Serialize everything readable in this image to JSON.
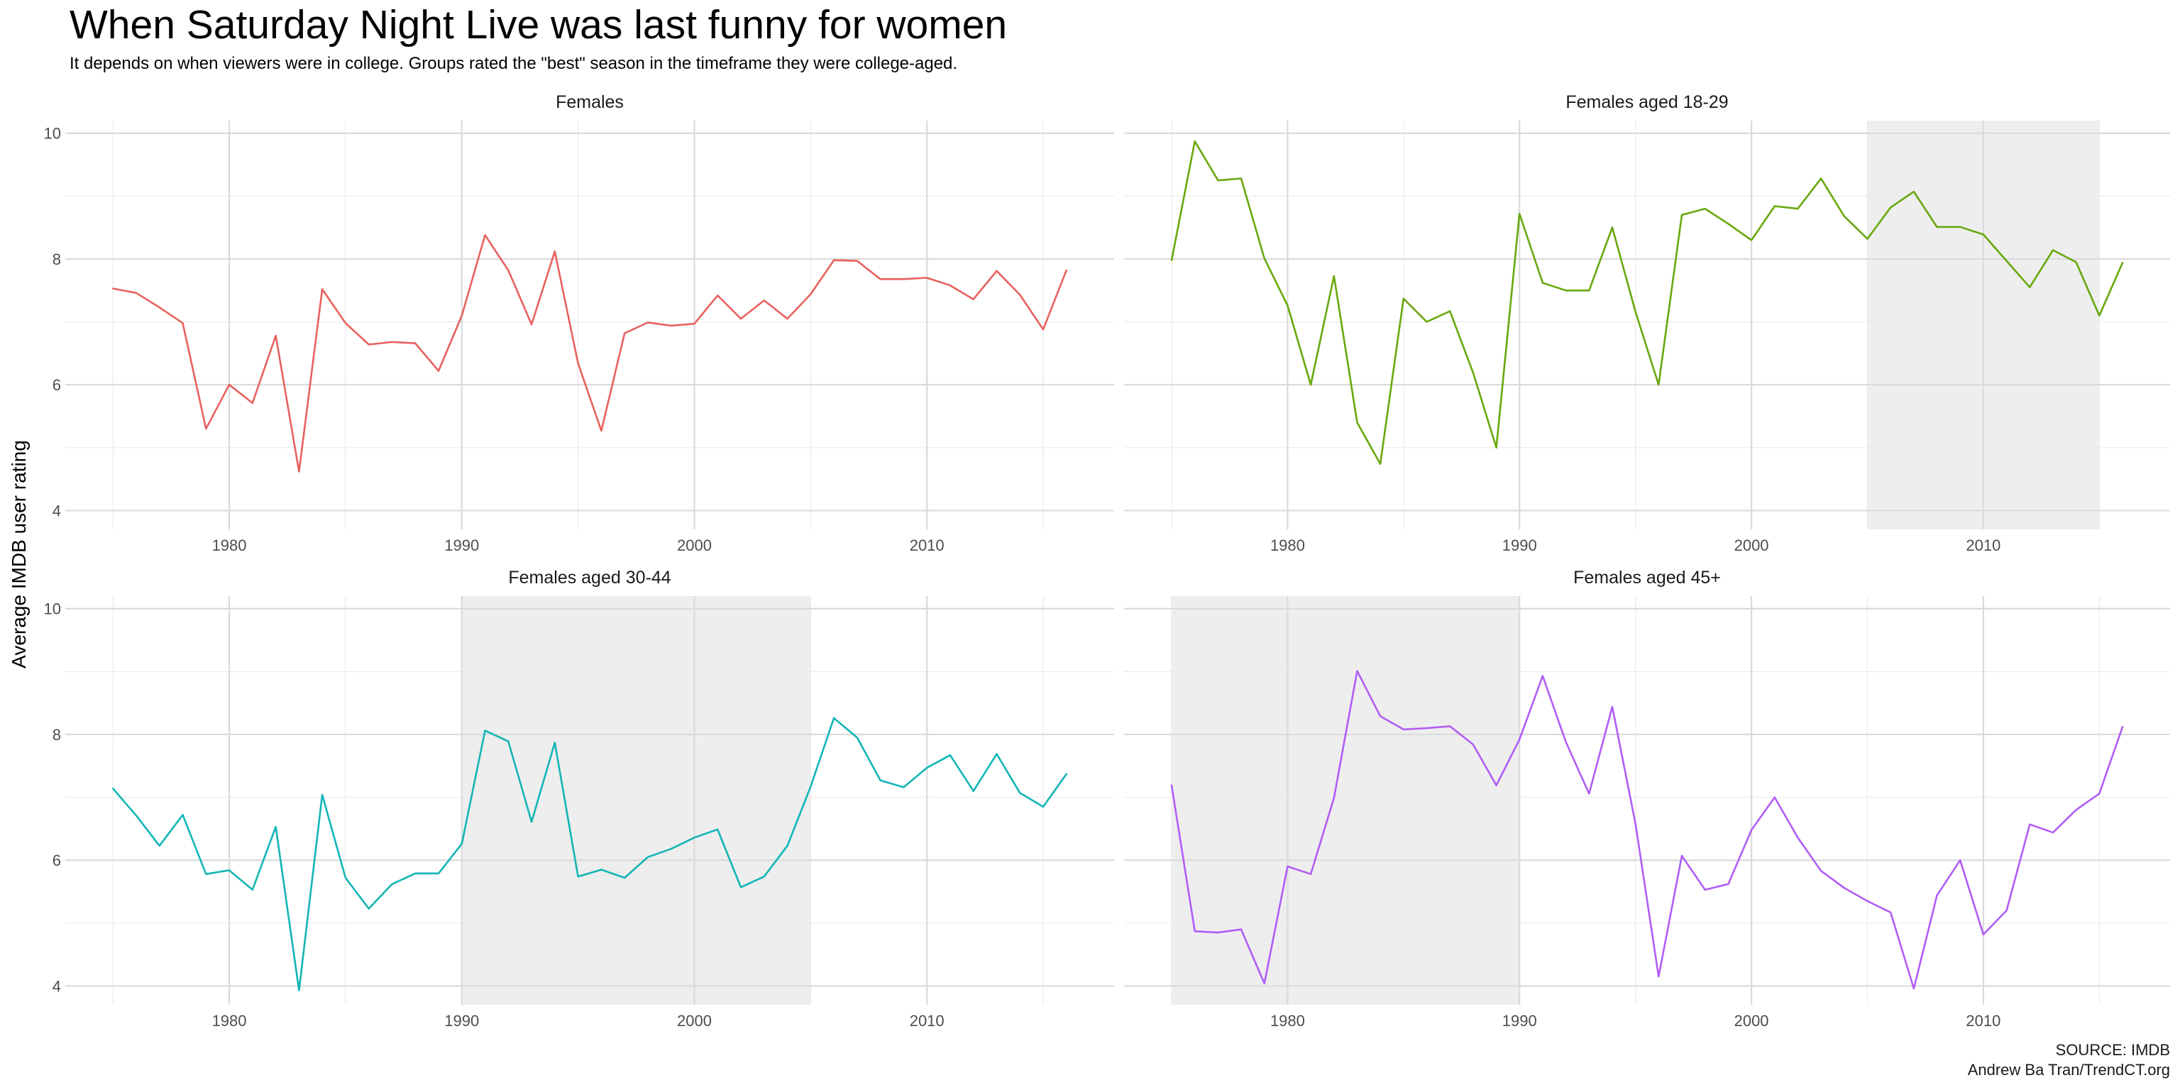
{
  "chart_data": {
    "type": "line",
    "title": "When Saturday Night Live was last funny for women",
    "subtitle": "It depends on when viewers were in college. Groups rated the \"best\" season in the timeframe they were college-aged.",
    "ylabel": "Average IMDB user rating",
    "xlabel": "",
    "xlim": [
      1975,
      2016
    ],
    "ylim": [
      3.7,
      10.2
    ],
    "x_ticks": [
      1980,
      1990,
      2000,
      2010
    ],
    "y_ticks": [
      4,
      6,
      8,
      10
    ],
    "grid": true,
    "caption": [
      "SOURCE: IMDB",
      "Andrew Ba Tran/TrendCT.org"
    ],
    "x": [
      1975,
      1976,
      1977,
      1978,
      1979,
      1980,
      1981,
      1982,
      1983,
      1984,
      1985,
      1986,
      1987,
      1988,
      1989,
      1990,
      1991,
      1992,
      1993,
      1994,
      1995,
      1996,
      1997,
      1998,
      1999,
      2000,
      2001,
      2002,
      2003,
      2004,
      2005,
      2006,
      2007,
      2008,
      2009,
      2010,
      2011,
      2012,
      2013,
      2014,
      2015,
      2016
    ],
    "panels": [
      {
        "title": "Females",
        "color": "#e8615e",
        "shade": null,
        "values": [
          7.53,
          7.46,
          7.23,
          6.98,
          5.3,
          6.0,
          5.71,
          6.78,
          4.62,
          7.52,
          6.98,
          6.64,
          6.68,
          6.66,
          6.22,
          7.1,
          8.38,
          7.82,
          6.96,
          8.12,
          6.34,
          5.27,
          6.82,
          6.99,
          6.94,
          6.97,
          7.42,
          7.05,
          7.34,
          7.05,
          7.44,
          7.98,
          7.97,
          7.68,
          7.68,
          7.7,
          7.58,
          7.36,
          7.81,
          7.43,
          6.88,
          7.82
        ]
      },
      {
        "title": "Females aged 18-29",
        "color": "#68a80d",
        "shade": [
          2005,
          2015
        ],
        "values": [
          7.98,
          9.87,
          9.25,
          9.28,
          8.01,
          7.26,
          6.0,
          7.73,
          5.4,
          4.74,
          7.37,
          7.0,
          7.17,
          6.19,
          5.0,
          8.72,
          7.62,
          7.5,
          7.5,
          8.5,
          7.16,
          6.0,
          8.7,
          8.8,
          8.56,
          8.3,
          8.84,
          8.8,
          9.28,
          8.68,
          8.32,
          8.82,
          9.07,
          8.51,
          8.51,
          8.39,
          7.97,
          7.55,
          8.14,
          7.95,
          7.1,
          7.94
        ]
      },
      {
        "title": "Females aged 30-44",
        "color": "#13b5b6",
        "shade": [
          1990,
          2005
        ],
        "values": [
          7.14,
          6.71,
          6.23,
          6.72,
          5.78,
          5.84,
          5.53,
          6.53,
          3.93,
          7.04,
          5.72,
          5.23,
          5.62,
          5.79,
          5.79,
          6.26,
          8.06,
          7.89,
          6.61,
          7.87,
          5.74,
          5.85,
          5.72,
          6.05,
          6.18,
          6.36,
          6.49,
          5.57,
          5.74,
          6.23,
          7.17,
          8.26,
          7.95,
          7.27,
          7.16,
          7.47,
          7.67,
          7.1,
          7.69,
          7.07,
          6.85,
          7.37
        ]
      },
      {
        "title": "Females aged 45+",
        "color": "#b15df6",
        "shade": [
          1975,
          1990
        ],
        "values": [
          7.19,
          4.87,
          4.85,
          4.9,
          4.04,
          5.9,
          5.78,
          6.99,
          9.01,
          8.29,
          8.08,
          8.1,
          8.13,
          7.84,
          7.19,
          7.92,
          8.93,
          7.88,
          7.06,
          8.44,
          6.58,
          4.15,
          6.07,
          5.53,
          5.62,
          6.48,
          7.0,
          6.36,
          5.83,
          5.56,
          5.35,
          5.17,
          3.96,
          5.44,
          6.0,
          4.82,
          5.2,
          6.57,
          6.44,
          6.8,
          7.06,
          8.12
        ]
      }
    ]
  }
}
